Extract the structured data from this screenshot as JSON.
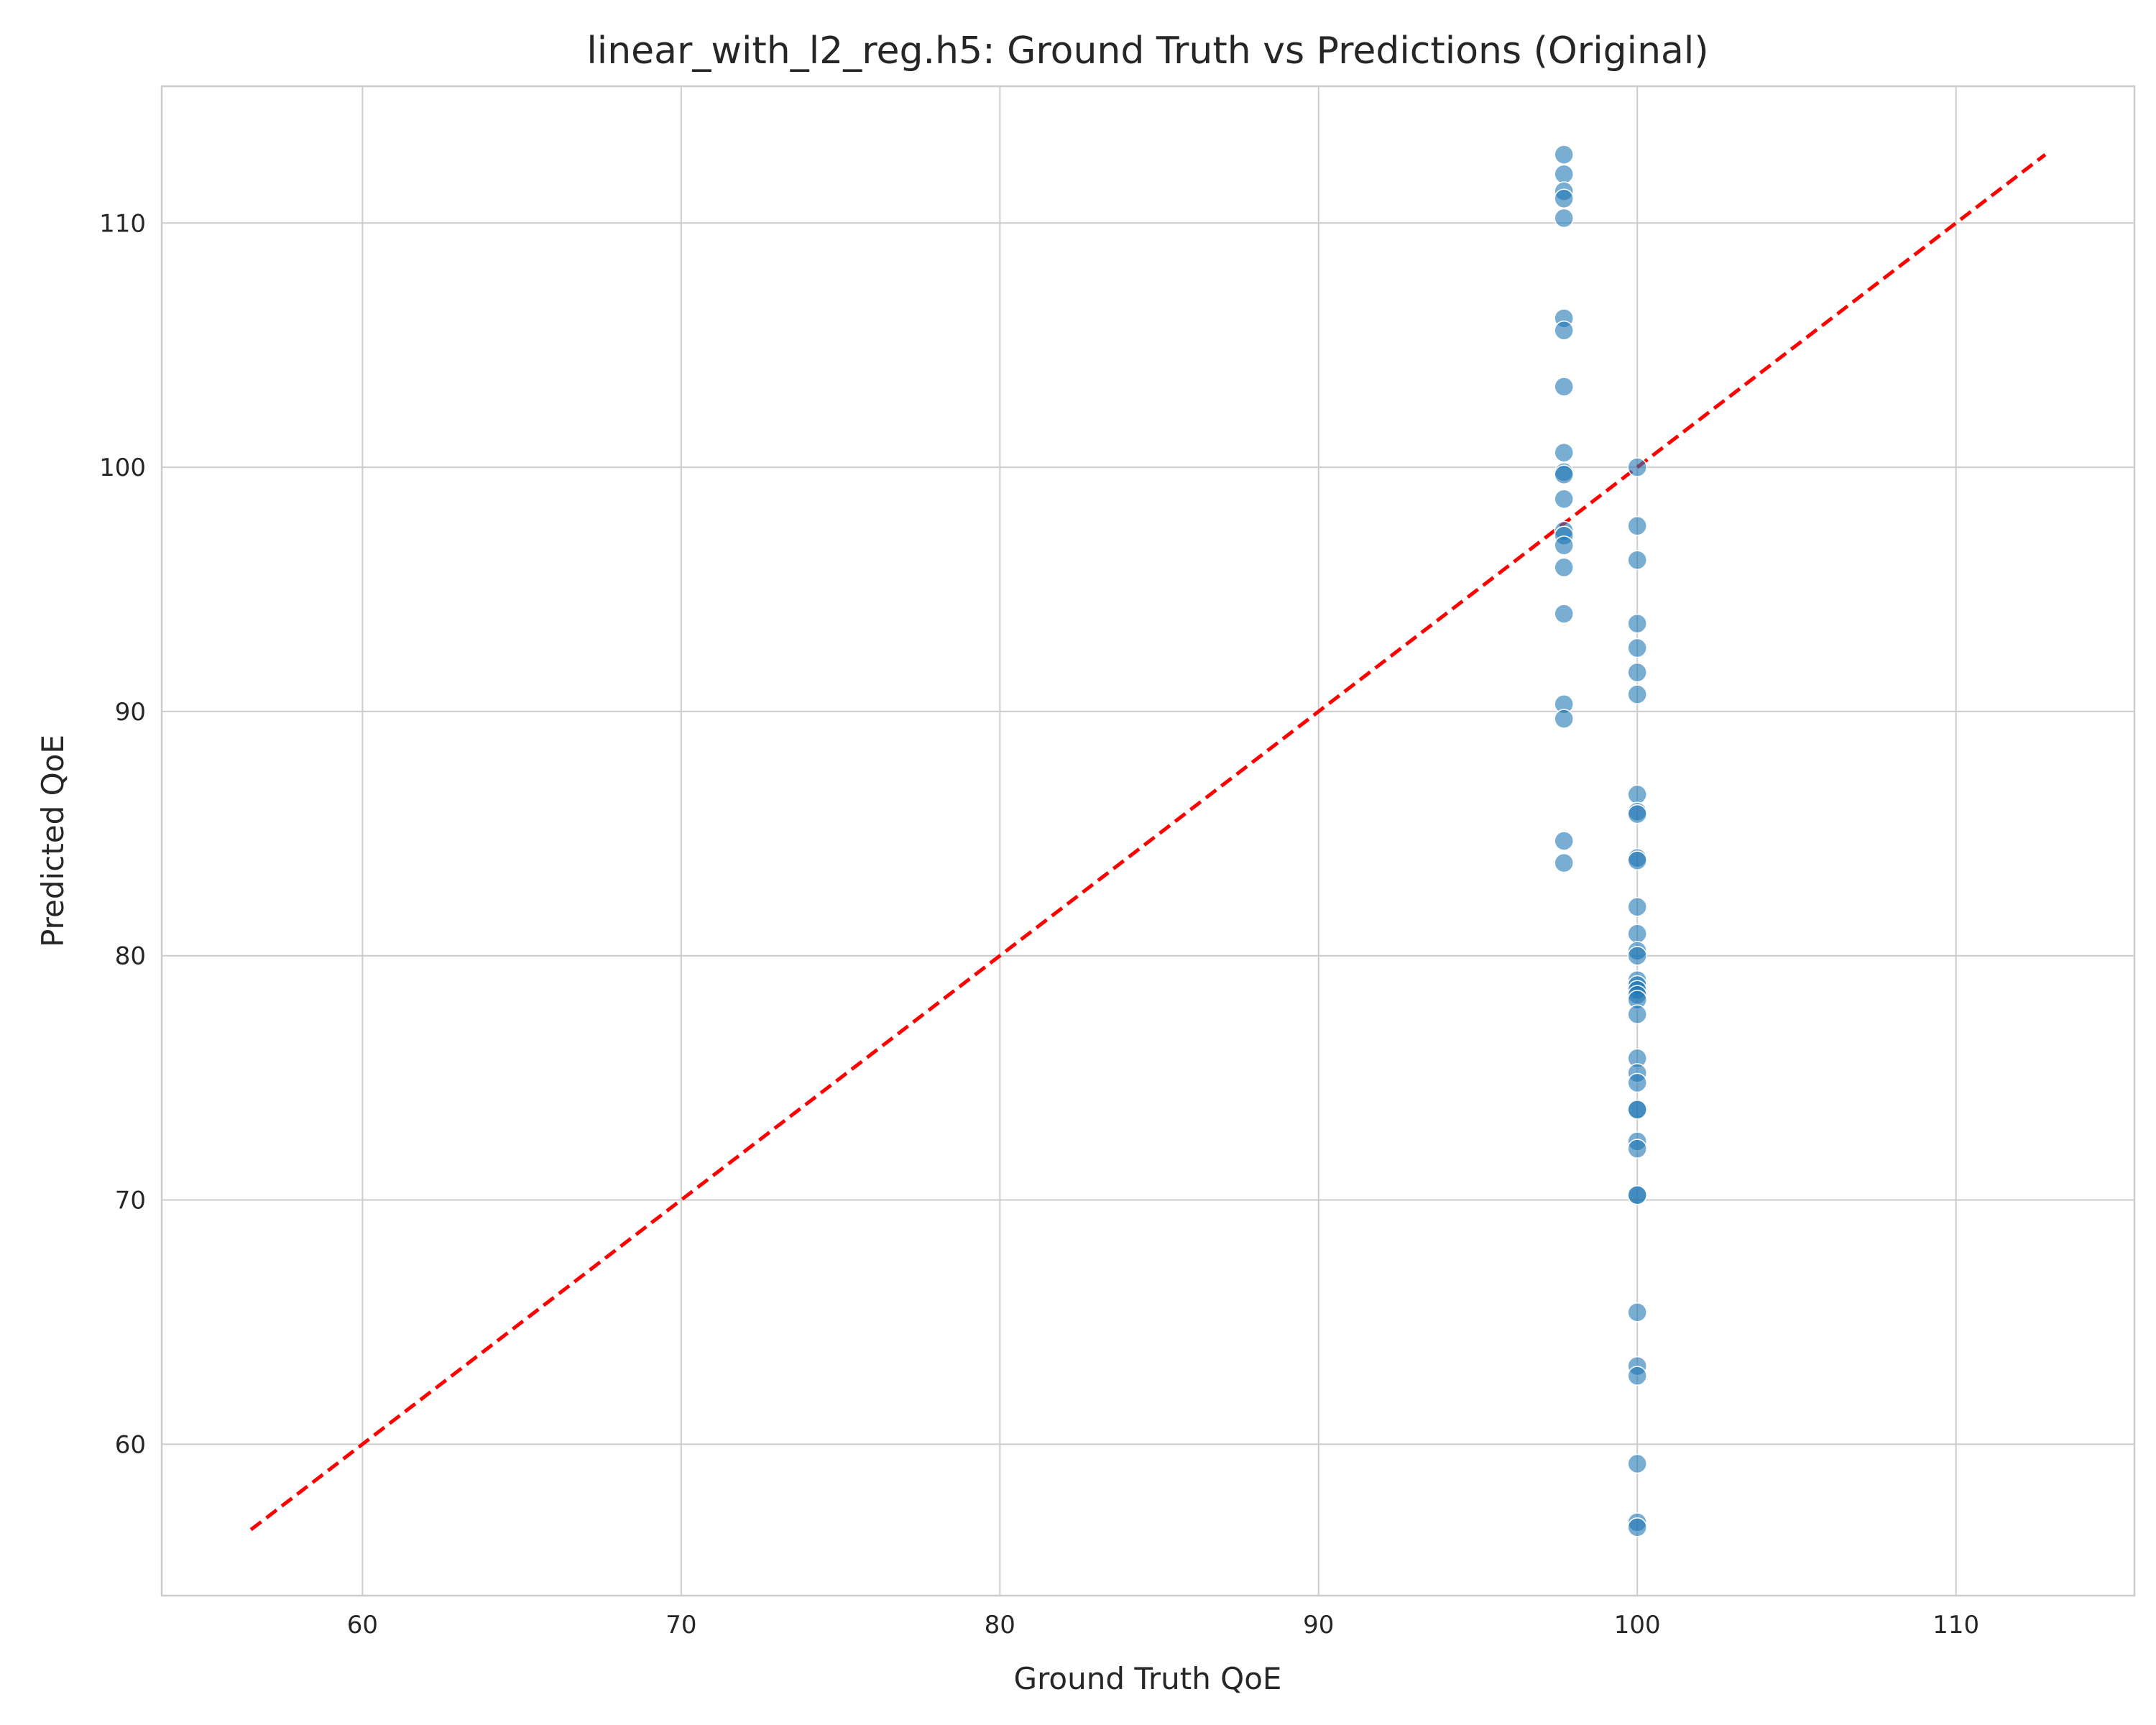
{
  "chart_data": {
    "type": "scatter",
    "title": "linear_with_l2_reg.h5: Ground Truth vs Predictions (Original)",
    "xlabel": "Ground Truth QoE",
    "ylabel": "Predicted QoE",
    "xlim": [
      53.7,
      115.6
    ],
    "ylim": [
      53.8,
      115.6
    ],
    "xticks": [
      60,
      70,
      80,
      90,
      100,
      110
    ],
    "yticks": [
      60,
      70,
      80,
      90,
      100,
      110
    ],
    "grid": true,
    "colors": {
      "points": "#1f77b4",
      "reference_line": "#ff0000",
      "grid": "#cccccc"
    },
    "reference_line": {
      "style": "dashed",
      "from": [
        56.5,
        56.5
      ],
      "to": [
        112.8,
        112.8
      ]
    },
    "series": [
      {
        "points": [
          [
            97.7,
            112.8
          ],
          [
            97.7,
            112.0
          ],
          [
            97.7,
            111.3
          ],
          [
            97.7,
            111.0
          ],
          [
            97.7,
            110.2
          ],
          [
            97.7,
            106.1
          ],
          [
            97.7,
            105.6
          ],
          [
            97.7,
            103.3
          ],
          [
            97.7,
            100.6
          ],
          [
            97.7,
            99.8
          ],
          [
            97.7,
            99.7
          ],
          [
            97.7,
            98.7
          ],
          [
            97.7,
            97.4
          ],
          [
            97.7,
            97.2
          ],
          [
            97.7,
            96.8
          ],
          [
            97.7,
            95.9
          ],
          [
            97.7,
            94.0
          ],
          [
            97.7,
            90.3
          ],
          [
            97.7,
            89.7
          ],
          [
            97.7,
            84.7
          ],
          [
            97.7,
            83.8
          ],
          [
            100.0,
            100.0
          ],
          [
            100.0,
            97.6
          ],
          [
            100.0,
            96.2
          ],
          [
            100.0,
            93.6
          ],
          [
            100.0,
            92.6
          ],
          [
            100.0,
            91.6
          ],
          [
            100.0,
            90.7
          ],
          [
            100.0,
            86.6
          ],
          [
            100.0,
            85.9
          ],
          [
            100.0,
            85.8
          ],
          [
            100.0,
            84.0
          ],
          [
            100.0,
            83.9
          ],
          [
            100.0,
            82.0
          ],
          [
            100.0,
            80.9
          ],
          [
            100.0,
            80.2
          ],
          [
            100.0,
            80.0
          ],
          [
            100.0,
            79.0
          ],
          [
            100.0,
            78.8
          ],
          [
            100.0,
            78.6
          ],
          [
            100.0,
            78.4
          ],
          [
            100.0,
            78.2
          ],
          [
            100.0,
            77.6
          ],
          [
            100.0,
            75.8
          ],
          [
            100.0,
            75.2
          ],
          [
            100.0,
            74.8
          ],
          [
            100.0,
            73.7
          ],
          [
            100.0,
            73.7
          ],
          [
            100.0,
            72.4
          ],
          [
            100.0,
            72.1
          ],
          [
            100.0,
            70.2
          ],
          [
            100.0,
            70.2
          ],
          [
            100.0,
            65.4
          ],
          [
            100.0,
            63.2
          ],
          [
            100.0,
            62.8
          ],
          [
            100.0,
            59.2
          ],
          [
            100.0,
            56.8
          ],
          [
            100.0,
            56.6
          ]
        ]
      }
    ]
  }
}
